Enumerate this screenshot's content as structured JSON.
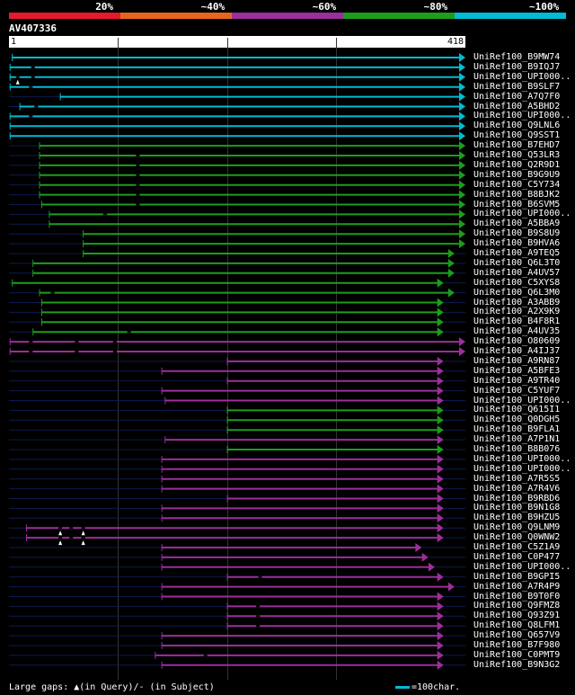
{
  "scale": {
    "labels": [
      "20%",
      "~40%",
      "~60%",
      "~80%",
      "~100%"
    ],
    "colors": [
      "#e8192c",
      "#e8661c",
      "#9b2f9b",
      "#1c9e1c",
      "#00bcd4"
    ]
  },
  "query": {
    "name": "AV407336",
    "start": "1",
    "end": "418",
    "length": 418
  },
  "footer": {
    "gaps_text": "Large gaps: ▲(in Query)/- (in Subject)",
    "scale_text": "=100char."
  },
  "hits": [
    {
      "label": "UniRef100_B9MW74",
      "color": "cyan",
      "start": 3,
      "end": 418,
      "arrow": true,
      "marks": []
    },
    {
      "label": "UniRef100_B9IQJ7",
      "color": "cyan",
      "start": 1,
      "end": 418,
      "arrow": true,
      "marks": [
        22
      ]
    },
    {
      "label": "UniRef100_UPI000..",
      "color": "cyan",
      "start": 1,
      "end": 418,
      "arrow": true,
      "marks": [
        8,
        22
      ],
      "qgap": [
        8
      ]
    },
    {
      "label": "UniRef100_B9SLF7",
      "color": "cyan",
      "start": 1,
      "end": 418,
      "arrow": true,
      "marks": [
        20
      ]
    },
    {
      "label": "UniRef100_A7Q7F0",
      "color": "cyan",
      "start": 47,
      "end": 418,
      "arrow": true,
      "marks": []
    },
    {
      "label": "UniRef100_A5BHD2",
      "color": "cyan",
      "start": 10,
      "end": 418,
      "arrow": true,
      "marks": [
        25
      ]
    },
    {
      "label": "UniRef100_UPI000..",
      "color": "cyan",
      "start": 1,
      "end": 418,
      "arrow": true,
      "marks": [
        20
      ]
    },
    {
      "label": "UniRef100_Q9LNL6",
      "color": "cyan",
      "start": 1,
      "end": 418,
      "arrow": true,
      "marks": []
    },
    {
      "label": "UniRef100_Q9SST1",
      "color": "cyan",
      "start": 1,
      "end": 418,
      "arrow": true,
      "marks": []
    },
    {
      "label": "UniRef100_B7EHD7",
      "color": "green",
      "start": 28,
      "end": 418,
      "arrow": true,
      "marks": []
    },
    {
      "label": "UniRef100_Q53LR3",
      "color": "green",
      "start": 28,
      "end": 418,
      "arrow": true,
      "marks": [
        118
      ]
    },
    {
      "label": "UniRef100_Q2R9D1",
      "color": "green",
      "start": 28,
      "end": 418,
      "arrow": true,
      "marks": [
        118
      ]
    },
    {
      "label": "UniRef100_B9G9U9",
      "color": "green",
      "start": 28,
      "end": 418,
      "arrow": true,
      "marks": [
        118
      ]
    },
    {
      "label": "UniRef100_C5Y734",
      "color": "green",
      "start": 28,
      "end": 418,
      "arrow": true,
      "marks": [
        118
      ]
    },
    {
      "label": "UniRef100_B8BJK2",
      "color": "green",
      "start": 28,
      "end": 418,
      "arrow": true,
      "marks": [
        118
      ]
    },
    {
      "label": "UniRef100_B6SVM5",
      "color": "green",
      "start": 30,
      "end": 418,
      "arrow": true,
      "marks": [
        118
      ]
    },
    {
      "label": "UniRef100_UPI000..",
      "color": "green",
      "start": 37,
      "end": 418,
      "arrow": true,
      "marks": [
        88
      ]
    },
    {
      "label": "UniRef100_A5BBA9",
      "color": "green",
      "start": 37,
      "end": 418,
      "arrow": true,
      "marks": []
    },
    {
      "label": "UniRef100_B9S8U9",
      "color": "green",
      "start": 68,
      "end": 418,
      "arrow": true,
      "marks": []
    },
    {
      "label": "UniRef100_B9HVA6",
      "color": "green",
      "start": 68,
      "end": 418,
      "arrow": true,
      "marks": []
    },
    {
      "label": "UniRef100_A9TEQ5",
      "color": "green",
      "start": 68,
      "end": 408,
      "arrow": true,
      "marks": []
    },
    {
      "label": "UniRef100_Q6L3T0",
      "color": "green",
      "start": 22,
      "end": 408,
      "arrow": true,
      "marks": []
    },
    {
      "label": "UniRef100_A4UV57",
      "color": "green",
      "start": 22,
      "end": 408,
      "arrow": true,
      "marks": []
    },
    {
      "label": "UniRef100_C5XYS8",
      "color": "green",
      "start": 3,
      "end": 398,
      "arrow": true,
      "marks": []
    },
    {
      "label": "UniRef100_Q6L3M0",
      "color": "green",
      "start": 28,
      "end": 408,
      "arrow": true,
      "marks": [
        40
      ]
    },
    {
      "label": "UniRef100_A3ABB9",
      "color": "green",
      "start": 30,
      "end": 398,
      "arrow": true,
      "marks": []
    },
    {
      "label": "UniRef100_A2X9K9",
      "color": "green",
      "start": 30,
      "end": 398,
      "arrow": true,
      "marks": []
    },
    {
      "label": "UniRef100_B4F8R1",
      "color": "green",
      "start": 30,
      "end": 398,
      "arrow": true,
      "marks": []
    },
    {
      "label": "UniRef100_A4UV35",
      "color": "green",
      "start": 22,
      "end": 398,
      "arrow": true,
      "marks": [
        110
      ]
    },
    {
      "label": "UniRef100_O80609",
      "color": "purple",
      "start": 1,
      "end": 418,
      "arrow": true,
      "marks": [
        20,
        62,
        97
      ]
    },
    {
      "label": "UniRef100_A4IJ37",
      "color": "purple",
      "start": 1,
      "end": 418,
      "arrow": true,
      "marks": [
        20,
        62,
        97
      ]
    },
    {
      "label": "UniRef100_A9RN87",
      "color": "purple",
      "start": 200,
      "end": 398,
      "arrow": true,
      "marks": []
    },
    {
      "label": "UniRef100_A5BFE3",
      "color": "purple",
      "start": 140,
      "end": 398,
      "arrow": true,
      "marks": []
    },
    {
      "label": "UniRef100_A9TR40",
      "color": "purple",
      "start": 200,
      "end": 398,
      "arrow": true,
      "marks": []
    },
    {
      "label": "UniRef100_C5YUF7",
      "color": "purple",
      "start": 140,
      "end": 398,
      "arrow": true,
      "marks": []
    },
    {
      "label": "UniRef100_UPI000..",
      "color": "purple",
      "start": 143,
      "end": 398,
      "arrow": true,
      "marks": []
    },
    {
      "label": "UniRef100_Q615I1",
      "color": "green",
      "start": 200,
      "end": 398,
      "arrow": true,
      "marks": []
    },
    {
      "label": "UniRef100_Q0DGH5",
      "color": "green",
      "start": 200,
      "end": 398,
      "arrow": true,
      "marks": []
    },
    {
      "label": "UniRef100_B9FLA1",
      "color": "green",
      "start": 200,
      "end": 398,
      "arrow": true,
      "marks": []
    },
    {
      "label": "UniRef100_A7P1N1",
      "color": "purple",
      "start": 143,
      "end": 398,
      "arrow": true,
      "marks": []
    },
    {
      "label": "UniRef100_B8B076",
      "color": "green",
      "start": 200,
      "end": 398,
      "arrow": true,
      "marks": []
    },
    {
      "label": "UniRef100_UPI000..",
      "color": "purple",
      "start": 140,
      "end": 398,
      "arrow": true,
      "marks": []
    },
    {
      "label": "UniRef100_UPI000..",
      "color": "purple",
      "start": 140,
      "end": 398,
      "arrow": true,
      "marks": []
    },
    {
      "label": "UniRef100_A7R5S5",
      "color": "purple",
      "start": 140,
      "end": 398,
      "arrow": true,
      "marks": []
    },
    {
      "label": "UniRef100_A7R4V6",
      "color": "purple",
      "start": 140,
      "end": 398,
      "arrow": true,
      "marks": []
    },
    {
      "label": "UniRef100_B9RBD6",
      "color": "purple",
      "start": 200,
      "end": 398,
      "arrow": true,
      "marks": []
    },
    {
      "label": "UniRef100_B9N1G8",
      "color": "purple",
      "start": 140,
      "end": 398,
      "arrow": true,
      "marks": []
    },
    {
      "label": "UniRef100_B9HZU5",
      "color": "purple",
      "start": 140,
      "end": 398,
      "arrow": true,
      "marks": []
    },
    {
      "label": "UniRef100_Q9LNM9",
      "color": "purple",
      "start": 16,
      "end": 398,
      "arrow": true,
      "marks": [
        47,
        57,
        68
      ],
      "qgap": [
        47,
        68
      ]
    },
    {
      "label": "UniRef100_Q0WNW2",
      "color": "purple",
      "start": 16,
      "end": 398,
      "arrow": true,
      "marks": [
        47,
        57,
        68
      ],
      "qgap": [
        47,
        68
      ]
    },
    {
      "label": "UniRef100_C5Z1A9",
      "color": "purple",
      "start": 140,
      "end": 378,
      "arrow": true,
      "marks": []
    },
    {
      "label": "UniRef100_C0P477",
      "color": "purple",
      "start": 140,
      "end": 384,
      "arrow": true,
      "marks": []
    },
    {
      "label": "UniRef100_UPI000..",
      "color": "purple",
      "start": 140,
      "end": 390,
      "arrow": true,
      "marks": []
    },
    {
      "label": "UniRef100_B9GPI5",
      "color": "purple",
      "start": 200,
      "end": 398,
      "arrow": true,
      "marks": [
        230
      ]
    },
    {
      "label": "UniRef100_A7R4P9",
      "color": "purple",
      "start": 140,
      "end": 408,
      "arrow": true,
      "marks": []
    },
    {
      "label": "UniRef100_B9T0F0",
      "color": "purple",
      "start": 140,
      "end": 398,
      "arrow": true,
      "marks": []
    },
    {
      "label": "UniRef100_Q9FMZ8",
      "color": "purple",
      "start": 200,
      "end": 398,
      "arrow": true,
      "marks": [
        228
      ]
    },
    {
      "label": "UniRef100_Q93Z91",
      "color": "purple",
      "start": 200,
      "end": 398,
      "arrow": true,
      "marks": [
        228
      ]
    },
    {
      "label": "UniRef100_Q8LFM1",
      "color": "purple",
      "start": 200,
      "end": 398,
      "arrow": true,
      "marks": [
        228
      ]
    },
    {
      "label": "UniRef100_Q657V9",
      "color": "purple",
      "start": 140,
      "end": 398,
      "arrow": true,
      "marks": []
    },
    {
      "label": "UniRef100_B7F980",
      "color": "purple",
      "start": 140,
      "end": 398,
      "arrow": true,
      "marks": []
    },
    {
      "label": "UniRef100_C0PMT9",
      "color": "purple",
      "start": 134,
      "end": 398,
      "arrow": true,
      "marks": [
        180
      ]
    },
    {
      "label": "UniRef100_B9N3G2",
      "color": "purple",
      "start": 140,
      "end": 398,
      "arrow": true,
      "marks": []
    }
  ]
}
